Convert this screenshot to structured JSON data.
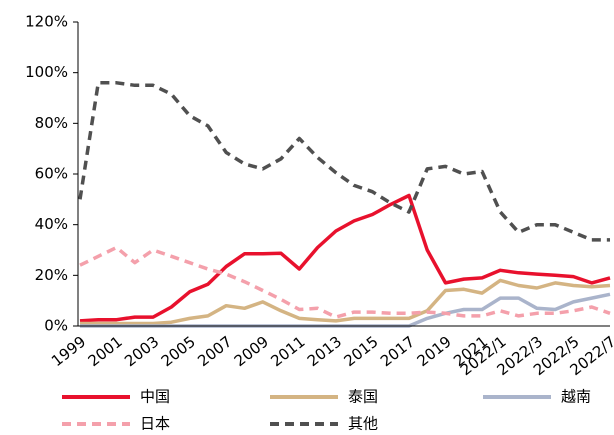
{
  "chart_data": {
    "type": "line",
    "categories": [
      "1999",
      null,
      "2001",
      null,
      "2003",
      null,
      "2005",
      null,
      "2007",
      null,
      "2009",
      null,
      "2011",
      null,
      "2013",
      null,
      "2015",
      null,
      "2017",
      null,
      "2019",
      null,
      "2021",
      "2022/1",
      null,
      "2022/3",
      null,
      "2022/5",
      null,
      "2022/7"
    ],
    "ylim": [
      0,
      120
    ],
    "yticks": [
      {
        "value": 0,
        "label": "0%"
      },
      {
        "value": 20,
        "label": "20%"
      },
      {
        "value": 40,
        "label": "40%"
      },
      {
        "value": 60,
        "label": "60%"
      },
      {
        "value": 80,
        "label": "80%"
      },
      {
        "value": 100,
        "label": "100%"
      },
      {
        "value": 120,
        "label": "120%"
      }
    ],
    "series": [
      {
        "name": "中国",
        "color": "#e8112d",
        "dashed": false,
        "values": [
          2,
          2.5,
          2.5,
          3.5,
          3.5,
          7.5,
          13.5,
          16.5,
          23.5,
          28.5,
          28.5,
          28.7,
          22.5,
          31,
          37.5,
          41.5,
          44,
          48,
          51.5,
          30,
          17,
          18.5,
          19,
          22,
          21,
          20.5,
          20,
          19.5,
          17,
          19
        ]
      },
      {
        "name": "泰国",
        "color": "#d4b483",
        "dashed": false,
        "values": [
          1,
          1,
          1,
          1,
          1,
          1.5,
          3,
          4,
          8,
          7,
          9.5,
          6,
          3,
          2.5,
          2,
          3,
          3,
          3,
          3,
          6,
          14,
          14.5,
          13,
          18,
          16,
          15,
          17,
          16,
          15.5,
          16
        ]
      },
      {
        "name": "越南",
        "color": "#aab4cb",
        "dashed": false,
        "values": [
          0,
          0,
          0,
          0,
          0,
          0,
          0,
          0,
          0,
          0,
          0,
          0,
          0,
          0,
          0,
          0,
          0,
          0,
          0,
          3,
          5,
          6.5,
          6.5,
          11,
          11,
          7,
          6.5,
          9.5,
          11,
          12.5
        ]
      },
      {
        "name": "日本",
        "color": "#f4a0ab",
        "dashed": true,
        "values": [
          24,
          27.5,
          31,
          25,
          30,
          27.5,
          25,
          22.5,
          20.5,
          17.5,
          14,
          10.5,
          6.5,
          7,
          3.5,
          5.5,
          5.5,
          5,
          5,
          5.5,
          5,
          4,
          4,
          6,
          4,
          5,
          5,
          6,
          7.5,
          5
        ]
      },
      {
        "name": "其他",
        "color": "#505050",
        "dashed": true,
        "values": [
          50,
          96,
          96,
          95,
          95,
          91.5,
          83,
          79,
          68.5,
          64,
          62,
          66,
          74,
          66.5,
          60.5,
          55.5,
          53,
          48.5,
          45,
          62,
          63,
          60,
          61,
          45,
          37,
          40,
          40,
          37,
          34,
          34
        ]
      }
    ]
  }
}
